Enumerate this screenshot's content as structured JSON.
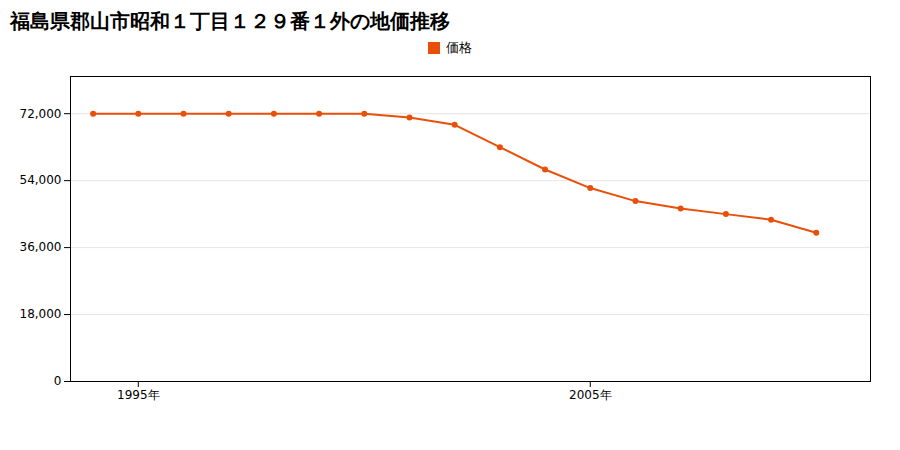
{
  "chart_data": {
    "type": "line",
    "title": "福島県郡山市昭和１丁目１２９番１外の地価推移",
    "x": [
      1994,
      1995,
      1996,
      1997,
      1998,
      1999,
      2000,
      2001,
      2002,
      2003,
      2004,
      2005,
      2006,
      2007,
      2008,
      2009,
      2010
    ],
    "series": [
      {
        "name": "価格",
        "color": "#E8500A",
        "marker": "circle",
        "values": [
          72000,
          72000,
          72000,
          72000,
          72000,
          72000,
          72000,
          71000,
          69000,
          63000,
          57000,
          52000,
          48500,
          46500,
          45000,
          43500,
          40000
        ]
      }
    ],
    "xlim": [
      1993.5,
      2011.2
    ],
    "xticks": [
      {
        "value": 1995,
        "label": "1995年"
      },
      {
        "value": 2005,
        "label": "2005年"
      }
    ],
    "ylim": [
      0,
      82000
    ],
    "yticks": [
      0,
      {
        "value": 18000,
        "label": "18,000"
      },
      {
        "value": 36000,
        "label": "36,000"
      },
      {
        "value": 54000,
        "label": "54,000"
      },
      {
        "value": 72000,
        "label": "72,000"
      }
    ],
    "grid": "y",
    "legend": "top"
  }
}
